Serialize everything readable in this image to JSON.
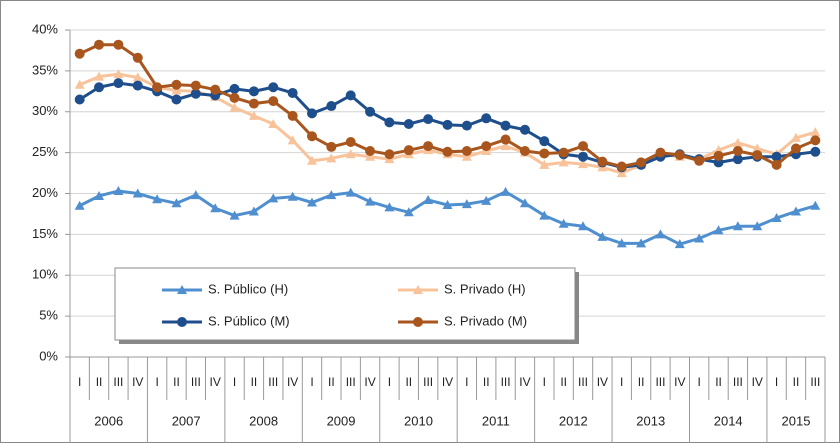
{
  "chart_data": {
    "type": "line",
    "groups": [
      {
        "name": "2006",
        "categories": [
          "I",
          "II",
          "III",
          "IV"
        ]
      },
      {
        "name": "2007",
        "categories": [
          "I",
          "II",
          "III",
          "IV"
        ]
      },
      {
        "name": "2008",
        "categories": [
          "I",
          "II",
          "III",
          "IV"
        ]
      },
      {
        "name": "2009",
        "categories": [
          "I",
          "II",
          "III",
          "IV"
        ]
      },
      {
        "name": "2010",
        "categories": [
          "I",
          "II",
          "III",
          "IV"
        ]
      },
      {
        "name": "2011",
        "categories": [
          "I",
          "II",
          "III",
          "IV"
        ]
      },
      {
        "name": "2012",
        "categories": [
          "I",
          "II",
          "III",
          "IV"
        ]
      },
      {
        "name": "2013",
        "categories": [
          "I",
          "II",
          "III",
          "IV"
        ]
      },
      {
        "name": "2014",
        "categories": [
          "I",
          "II",
          "III",
          "IV"
        ]
      },
      {
        "name": "2015",
        "categories": [
          "I",
          "II",
          "III"
        ]
      }
    ],
    "series": [
      {
        "name": "S. Público (H)",
        "color": "#4f8fcf",
        "marker": "triangle",
        "values": [
          18.5,
          19.7,
          20.3,
          20,
          19.3,
          18.8,
          19.8,
          18.2,
          17.3,
          17.8,
          19.4,
          19.6,
          18.9,
          19.8,
          20.1,
          19,
          18.3,
          17.7,
          19.2,
          18.6,
          18.7,
          19.1,
          20.2,
          18.8,
          17.3,
          16.3,
          16,
          14.7,
          13.9,
          13.9,
          15,
          13.8,
          14.5,
          15.5,
          16,
          16,
          17,
          17.8,
          18.5
        ]
      },
      {
        "name": "S. Privado (H)",
        "color": "#f8c39a",
        "marker": "triangle",
        "values": [
          33.3,
          34.3,
          34.6,
          34.2,
          33,
          32.6,
          32.5,
          31.8,
          30.5,
          29.5,
          28.5,
          26.5,
          24,
          24.3,
          24.8,
          24.5,
          24.2,
          24.8,
          25.3,
          24.8,
          24.5,
          25.2,
          25.8,
          25,
          23.5,
          23.8,
          23.6,
          23.2,
          22.5,
          23.5,
          24.8,
          24.5,
          24.2,
          25.3,
          26.2,
          25.5,
          24.8,
          26.8,
          27.5
        ]
      },
      {
        "name": "S. Público (M)",
        "color": "#1f4e8c",
        "marker": "circle",
        "values": [
          31.5,
          33,
          33.5,
          33.2,
          32.5,
          31.5,
          32.2,
          32,
          32.8,
          32.5,
          33,
          32.3,
          29.8,
          30.7,
          32,
          30,
          28.7,
          28.5,
          29.1,
          28.4,
          28.3,
          29.2,
          28.3,
          27.8,
          26.4,
          24.8,
          24.5,
          23.8,
          23.2,
          23.5,
          24.5,
          24.8,
          24.2,
          23.8,
          24.2,
          24.5,
          24.5,
          24.8,
          25.1
        ]
      },
      {
        "name": "S. Privado (M)",
        "color": "#a8561e",
        "marker": "circle",
        "values": [
          37.1,
          38.2,
          38.2,
          36.6,
          33,
          33.3,
          33.2,
          32.7,
          31.7,
          31,
          31.3,
          29.5,
          27,
          25.7,
          26.3,
          25.2,
          24.8,
          25.3,
          25.8,
          25.1,
          25.2,
          25.8,
          26.6,
          25.2,
          24.9,
          25,
          25.8,
          23.9,
          23.3,
          23.8,
          25,
          24.7,
          24,
          24.6,
          25.2,
          24.7,
          23.5,
          25.5,
          26.5
        ]
      }
    ],
    "ylim": [
      0,
      40
    ],
    "yticks": [
      {
        "value": 0,
        "label": "0%"
      },
      {
        "value": 5,
        "label": "5%"
      },
      {
        "value": 10,
        "label": "10%"
      },
      {
        "value": 15,
        "label": "15%"
      },
      {
        "value": 20,
        "label": "20%"
      },
      {
        "value": 25,
        "label": "25%"
      },
      {
        "value": 30,
        "label": "30%"
      },
      {
        "value": 35,
        "label": "35%"
      },
      {
        "value": 40,
        "label": "40%"
      }
    ],
    "grid": true
  }
}
